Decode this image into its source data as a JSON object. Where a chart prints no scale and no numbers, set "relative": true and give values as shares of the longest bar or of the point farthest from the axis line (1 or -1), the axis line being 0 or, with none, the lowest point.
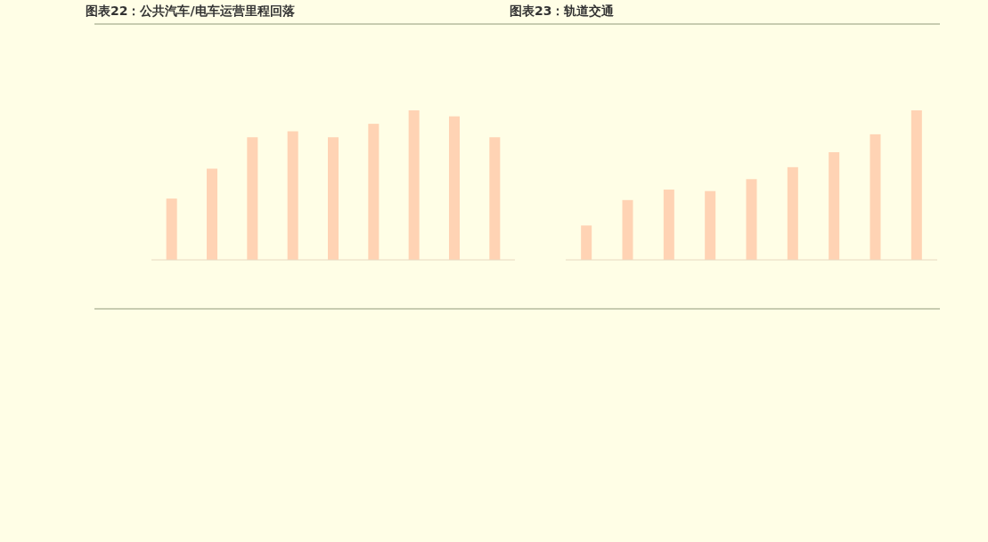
{
  "chart_data": [
    {
      "type": "bar",
      "title": "图表22：公共汽车/电车运营里程回落",
      "relative": true,
      "categories": [
        null,
        null,
        null,
        null,
        null,
        null,
        null,
        null,
        null
      ],
      "values": [
        0.41,
        0.61,
        0.82,
        0.86,
        0.82,
        0.91,
        1,
        0.96,
        0.82
      ],
      "color": "#ffd3b4"
    },
    {
      "type": "bar",
      "title": "图表23：轨道交通",
      "relative": true,
      "categories": [
        null,
        null,
        null,
        null,
        null,
        null,
        null,
        null,
        null
      ],
      "values": [
        0.23,
        0.4,
        0.47,
        0.46,
        0.54,
        0.62,
        0.72,
        0.84,
        1
      ],
      "color": "#ffd3b4"
    }
  ]
}
